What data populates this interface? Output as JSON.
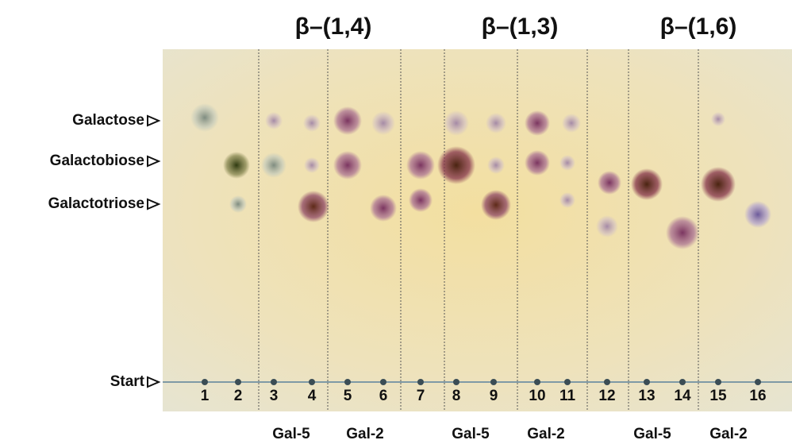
{
  "headers": [
    "β–(1,4)",
    "β–(1,3)",
    "β–(1,6)"
  ],
  "row_labels": [
    "Galactose",
    "Galactobiose",
    "Galactotriose",
    "Start"
  ],
  "lanes": [
    "1",
    "2",
    "3",
    "4",
    "5",
    "6",
    "7",
    "8",
    "9",
    "10",
    "11",
    "12",
    "13",
    "14",
    "15",
    "16"
  ],
  "bottom_labels": [
    "Gal-5",
    "Gal-2",
    "Gal-5",
    "Gal-2",
    "Gal-5",
    "Gal-2"
  ]
}
